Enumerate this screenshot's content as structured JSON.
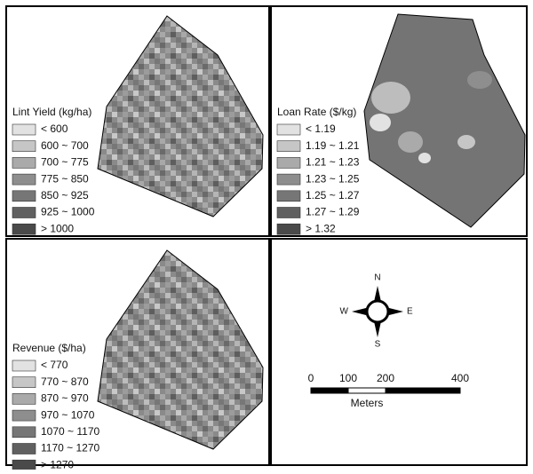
{
  "panels": [
    {
      "legend": {
        "title": "Lint Yield (kg/ha)",
        "items": [
          {
            "label": "< 600",
            "color": "#e2e2e2"
          },
          {
            "label": "600 ~ 700",
            "color": "#c6c6c6"
          },
          {
            "label": "700 ~ 775",
            "color": "#aaaaaa"
          },
          {
            "label": "775 ~ 850",
            "color": "#8e8e8e"
          },
          {
            "label": "850 ~ 925",
            "color": "#767676"
          },
          {
            "label": "925 ~ 1000",
            "color": "#606060"
          },
          {
            "label": "> 1000",
            "color": "#4a4a4a"
          }
        ]
      }
    },
    {
      "legend": {
        "title": "Loan Rate ($/kg)",
        "items": [
          {
            "label": "< 1.19",
            "color": "#e2e2e2"
          },
          {
            "label": "1.19 ~ 1.21",
            "color": "#c6c6c6"
          },
          {
            "label": "1.21 ~ 1.23",
            "color": "#aaaaaa"
          },
          {
            "label": "1.23 ~ 1.25",
            "color": "#8e8e8e"
          },
          {
            "label": "1.25 ~ 1.27",
            "color": "#767676"
          },
          {
            "label": "1.27 ~ 1.29",
            "color": "#606060"
          },
          {
            "label": "> 1.32",
            "color": "#4a4a4a"
          }
        ]
      }
    },
    {
      "legend": {
        "title": "Revenue ($/ha)",
        "items": [
          {
            "label": "< 770",
            "color": "#e2e2e2"
          },
          {
            "label": "770 ~ 870",
            "color": "#c6c6c6"
          },
          {
            "label": "870 ~ 970",
            "color": "#aaaaaa"
          },
          {
            "label": "970 ~ 1070",
            "color": "#8e8e8e"
          },
          {
            "label": "1070 ~ 1170",
            "color": "#767676"
          },
          {
            "label": "1170 ~ 1270",
            "color": "#606060"
          },
          {
            "label": "> 1270",
            "color": "#4a4a4a"
          }
        ]
      }
    }
  ],
  "compass": {
    "north": "N",
    "south": "S",
    "east": "E",
    "west": "W"
  },
  "scale_bar": {
    "ticks": [
      0,
      100,
      200,
      400
    ],
    "unit": "Meters"
  }
}
